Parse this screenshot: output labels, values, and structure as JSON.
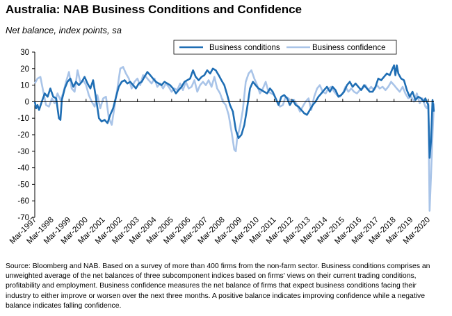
{
  "title": "Australia: NAB Business Conditions and Confidence",
  "subtitle": "Net balance, index points, sa",
  "source_note": "Source: Bloomberg and NAB. Based on a survey of more than 400 firms from the non-farm sector. Business conditions comprises an unweighted average of the net balances of three subcomponent indices based on firms' views on their current trading conditions, profitability and employment. Business confidence measures the net balance of firms that expect business conditions facing their industry to either improve or worsen over the next three months. A positive balance indicates improving confidence while a negative balance indicates falling confidence.",
  "colors": {
    "conditions": "#1f6eb4",
    "confidence": "#a9c4e8",
    "axis": "#000000"
  },
  "chart_data": {
    "type": "line",
    "title": "Australia: NAB Business Conditions and Confidence",
    "subtitle": "Net balance, index points, sa",
    "ylim": [
      -70,
      30
    ],
    "yticks": [
      30,
      20,
      10,
      0,
      -10,
      -20,
      -30,
      -40,
      -50,
      -60,
      -70
    ],
    "xlim": [
      1997.17,
      2020.5
    ],
    "xticks": [
      "Mar-1997",
      "Mar-1998",
      "Mar-1999",
      "Mar-2000",
      "Mar-2001",
      "Mar-2002",
      "Mar-2003",
      "Mar-2004",
      "Mar-2005",
      "Mar-2006",
      "Mar-2007",
      "Mar-2008",
      "Mar-2009",
      "Mar-2010",
      "Mar-2011",
      "Mar-2012",
      "Mar-2013",
      "Mar-2014",
      "Mar-2015",
      "Mar-2016",
      "Mar-2017",
      "Mar-2018",
      "Mar-2019",
      "Mar-2020"
    ],
    "legend_position": "top-right",
    "grid": false,
    "series": [
      {
        "name": "Business conditions",
        "points": [
          [
            1997.17,
            0
          ],
          [
            1997.25,
            -4
          ],
          [
            1997.33,
            -2
          ],
          [
            1997.42,
            -5
          ],
          [
            1997.58,
            0
          ],
          [
            1997.75,
            5
          ],
          [
            1997.92,
            3
          ],
          [
            1998.08,
            8
          ],
          [
            1998.25,
            3
          ],
          [
            1998.42,
            2
          ],
          [
            1998.58,
            -10
          ],
          [
            1998.67,
            -11
          ],
          [
            1998.75,
            1
          ],
          [
            1998.92,
            8
          ],
          [
            1999.08,
            12
          ],
          [
            1999.25,
            14
          ],
          [
            1999.42,
            9
          ],
          [
            1999.58,
            12
          ],
          [
            1999.75,
            10
          ],
          [
            1999.92,
            12
          ],
          [
            2000.08,
            15
          ],
          [
            2000.25,
            11
          ],
          [
            2000.42,
            8
          ],
          [
            2000.58,
            13
          ],
          [
            2000.75,
            2
          ],
          [
            2000.92,
            -10
          ],
          [
            2001.08,
            -12
          ],
          [
            2001.25,
            -11
          ],
          [
            2001.42,
            -13
          ],
          [
            2001.58,
            -8
          ],
          [
            2001.75,
            -4
          ],
          [
            2001.92,
            3
          ],
          [
            2002.08,
            9
          ],
          [
            2002.25,
            12
          ],
          [
            2002.42,
            13
          ],
          [
            2002.58,
            11
          ],
          [
            2002.75,
            12
          ],
          [
            2002.92,
            10
          ],
          [
            2003.08,
            8
          ],
          [
            2003.25,
            11
          ],
          [
            2003.42,
            12
          ],
          [
            2003.58,
            15
          ],
          [
            2003.75,
            18
          ],
          [
            2003.92,
            16
          ],
          [
            2004.08,
            14
          ],
          [
            2004.25,
            12
          ],
          [
            2004.42,
            11
          ],
          [
            2004.58,
            10
          ],
          [
            2004.75,
            12
          ],
          [
            2004.92,
            11
          ],
          [
            2005.08,
            10
          ],
          [
            2005.25,
            8
          ],
          [
            2005.42,
            5
          ],
          [
            2005.58,
            7
          ],
          [
            2005.75,
            9
          ],
          [
            2005.92,
            12
          ],
          [
            2006.08,
            13
          ],
          [
            2006.25,
            14
          ],
          [
            2006.42,
            19
          ],
          [
            2006.58,
            15
          ],
          [
            2006.75,
            13
          ],
          [
            2006.92,
            15
          ],
          [
            2007.08,
            16
          ],
          [
            2007.25,
            19
          ],
          [
            2007.42,
            17
          ],
          [
            2007.58,
            20
          ],
          [
            2007.75,
            19
          ],
          [
            2007.92,
            16
          ],
          [
            2008.08,
            13
          ],
          [
            2008.25,
            10
          ],
          [
            2008.42,
            4
          ],
          [
            2008.58,
            -2
          ],
          [
            2008.75,
            -6
          ],
          [
            2008.92,
            -17
          ],
          [
            2009.08,
            -22
          ],
          [
            2009.25,
            -20
          ],
          [
            2009.42,
            -14
          ],
          [
            2009.58,
            -4
          ],
          [
            2009.75,
            8
          ],
          [
            2009.92,
            12
          ],
          [
            2010.08,
            10
          ],
          [
            2010.25,
            8
          ],
          [
            2010.42,
            7
          ],
          [
            2010.58,
            6
          ],
          [
            2010.75,
            5
          ],
          [
            2010.92,
            8
          ],
          [
            2011.08,
            6
          ],
          [
            2011.25,
            2
          ],
          [
            2011.42,
            -2
          ],
          [
            2011.58,
            3
          ],
          [
            2011.75,
            4
          ],
          [
            2011.92,
            2
          ],
          [
            2012.08,
            -2
          ],
          [
            2012.25,
            1
          ],
          [
            2012.42,
            -2
          ],
          [
            2012.58,
            -3
          ],
          [
            2012.75,
            -5
          ],
          [
            2012.92,
            -7
          ],
          [
            2013.08,
            -8
          ],
          [
            2013.25,
            -5
          ],
          [
            2013.42,
            -2
          ],
          [
            2013.58,
            0
          ],
          [
            2013.75,
            3
          ],
          [
            2013.92,
            5
          ],
          [
            2014.08,
            7
          ],
          [
            2014.25,
            9
          ],
          [
            2014.42,
            6
          ],
          [
            2014.58,
            9
          ],
          [
            2014.75,
            7
          ],
          [
            2014.92,
            3
          ],
          [
            2015.08,
            4
          ],
          [
            2015.25,
            6
          ],
          [
            2015.42,
            10
          ],
          [
            2015.58,
            12
          ],
          [
            2015.75,
            9
          ],
          [
            2015.92,
            11
          ],
          [
            2016.08,
            9
          ],
          [
            2016.25,
            7
          ],
          [
            2016.42,
            10
          ],
          [
            2016.58,
            8
          ],
          [
            2016.75,
            6
          ],
          [
            2016.92,
            6
          ],
          [
            2017.08,
            9
          ],
          [
            2017.25,
            14
          ],
          [
            2017.42,
            13
          ],
          [
            2017.58,
            15
          ],
          [
            2017.75,
            17
          ],
          [
            2017.92,
            16
          ],
          [
            2018.08,
            20
          ],
          [
            2018.17,
            22
          ],
          [
            2018.25,
            16
          ],
          [
            2018.33,
            22
          ],
          [
            2018.42,
            17
          ],
          [
            2018.58,
            14
          ],
          [
            2018.75,
            13
          ],
          [
            2018.92,
            7
          ],
          [
            2019.08,
            3
          ],
          [
            2019.25,
            6
          ],
          [
            2019.42,
            1
          ],
          [
            2019.58,
            3
          ],
          [
            2019.75,
            2
          ],
          [
            2019.92,
            0
          ],
          [
            2020.0,
            2
          ],
          [
            2020.08,
            0
          ],
          [
            2020.17,
            -2
          ],
          [
            2020.25,
            -34
          ],
          [
            2020.33,
            -24
          ],
          [
            2020.42,
            1
          ],
          [
            2020.5,
            -6
          ]
        ]
      },
      {
        "name": "Business confidence",
        "points": [
          [
            1997.17,
            11
          ],
          [
            1997.33,
            14
          ],
          [
            1997.5,
            15
          ],
          [
            1997.67,
            6
          ],
          [
            1997.83,
            -2
          ],
          [
            1998.0,
            -3
          ],
          [
            1998.17,
            2
          ],
          [
            1998.33,
            -1
          ],
          [
            1998.5,
            5
          ],
          [
            1998.67,
            1
          ],
          [
            1998.83,
            5
          ],
          [
            1999.0,
            12
          ],
          [
            1999.17,
            18
          ],
          [
            1999.33,
            8
          ],
          [
            1999.5,
            6
          ],
          [
            1999.67,
            19
          ],
          [
            1999.83,
            12
          ],
          [
            2000.0,
            13
          ],
          [
            2000.17,
            10
          ],
          [
            2000.33,
            4
          ],
          [
            2000.5,
            0
          ],
          [
            2000.67,
            -3
          ],
          [
            2000.83,
            4
          ],
          [
            2001.0,
            -4
          ],
          [
            2001.17,
            2
          ],
          [
            2001.33,
            3
          ],
          [
            2001.5,
            -10
          ],
          [
            2001.67,
            -14
          ],
          [
            2001.83,
            -3
          ],
          [
            2002.0,
            8
          ],
          [
            2002.17,
            20
          ],
          [
            2002.33,
            21
          ],
          [
            2002.5,
            17
          ],
          [
            2002.67,
            14
          ],
          [
            2002.83,
            8
          ],
          [
            2003.0,
            12
          ],
          [
            2003.17,
            14
          ],
          [
            2003.33,
            10
          ],
          [
            2003.5,
            16
          ],
          [
            2003.67,
            15
          ],
          [
            2003.83,
            13
          ],
          [
            2004.0,
            11
          ],
          [
            2004.17,
            14
          ],
          [
            2004.33,
            9
          ],
          [
            2004.5,
            11
          ],
          [
            2004.67,
            8
          ],
          [
            2004.83,
            11
          ],
          [
            2005.0,
            9
          ],
          [
            2005.17,
            6
          ],
          [
            2005.33,
            8
          ],
          [
            2005.5,
            7
          ],
          [
            2005.67,
            11
          ],
          [
            2005.83,
            7
          ],
          [
            2006.0,
            12
          ],
          [
            2006.17,
            8
          ],
          [
            2006.33,
            9
          ],
          [
            2006.5,
            13
          ],
          [
            2006.67,
            6
          ],
          [
            2006.83,
            10
          ],
          [
            2007.0,
            12
          ],
          [
            2007.17,
            10
          ],
          [
            2007.33,
            13
          ],
          [
            2007.5,
            9
          ],
          [
            2007.67,
            15
          ],
          [
            2007.83,
            8
          ],
          [
            2008.0,
            5
          ],
          [
            2008.17,
            0
          ],
          [
            2008.33,
            -2
          ],
          [
            2008.5,
            -8
          ],
          [
            2008.67,
            -18
          ],
          [
            2008.83,
            -29
          ],
          [
            2008.92,
            -30
          ],
          [
            2009.0,
            -22
          ],
          [
            2009.17,
            -15
          ],
          [
            2009.33,
            -5
          ],
          [
            2009.5,
            12
          ],
          [
            2009.67,
            17
          ],
          [
            2009.83,
            19
          ],
          [
            2010.0,
            14
          ],
          [
            2010.17,
            10
          ],
          [
            2010.33,
            5
          ],
          [
            2010.5,
            8
          ],
          [
            2010.67,
            12
          ],
          [
            2010.83,
            6
          ],
          [
            2011.0,
            5
          ],
          [
            2011.17,
            4
          ],
          [
            2011.33,
            0
          ],
          [
            2011.5,
            -3
          ],
          [
            2011.67,
            -2
          ],
          [
            2011.83,
            3
          ],
          [
            2012.0,
            2
          ],
          [
            2012.17,
            0
          ],
          [
            2012.33,
            1
          ],
          [
            2012.5,
            -2
          ],
          [
            2012.67,
            -6
          ],
          [
            2012.83,
            -3
          ],
          [
            2013.0,
            0
          ],
          [
            2013.17,
            2
          ],
          [
            2013.33,
            -5
          ],
          [
            2013.5,
            3
          ],
          [
            2013.67,
            8
          ],
          [
            2013.83,
            10
          ],
          [
            2014.0,
            6
          ],
          [
            2014.17,
            5
          ],
          [
            2014.33,
            8
          ],
          [
            2014.5,
            9
          ],
          [
            2014.67,
            6
          ],
          [
            2014.83,
            4
          ],
          [
            2015.0,
            3
          ],
          [
            2015.17,
            5
          ],
          [
            2015.33,
            9
          ],
          [
            2015.5,
            6
          ],
          [
            2015.67,
            8
          ],
          [
            2015.83,
            6
          ],
          [
            2016.0,
            5
          ],
          [
            2016.17,
            7
          ],
          [
            2016.33,
            8
          ],
          [
            2016.5,
            10
          ],
          [
            2016.67,
            7
          ],
          [
            2016.83,
            9
          ],
          [
            2017.0,
            7
          ],
          [
            2017.17,
            10
          ],
          [
            2017.33,
            8
          ],
          [
            2017.5,
            9
          ],
          [
            2017.67,
            7
          ],
          [
            2017.83,
            9
          ],
          [
            2018.0,
            12
          ],
          [
            2018.17,
            10
          ],
          [
            2018.33,
            8
          ],
          [
            2018.5,
            6
          ],
          [
            2018.67,
            9
          ],
          [
            2018.83,
            5
          ],
          [
            2019.0,
            2
          ],
          [
            2019.17,
            3
          ],
          [
            2019.33,
            0
          ],
          [
            2019.5,
            5
          ],
          [
            2019.67,
            -1
          ],
          [
            2019.83,
            2
          ],
          [
            2020.0,
            -3
          ],
          [
            2020.08,
            -4
          ],
          [
            2020.17,
            -1
          ],
          [
            2020.25,
            -66
          ],
          [
            2020.33,
            -45
          ],
          [
            2020.42,
            -20
          ],
          [
            2020.5,
            -1
          ]
        ]
      }
    ]
  }
}
